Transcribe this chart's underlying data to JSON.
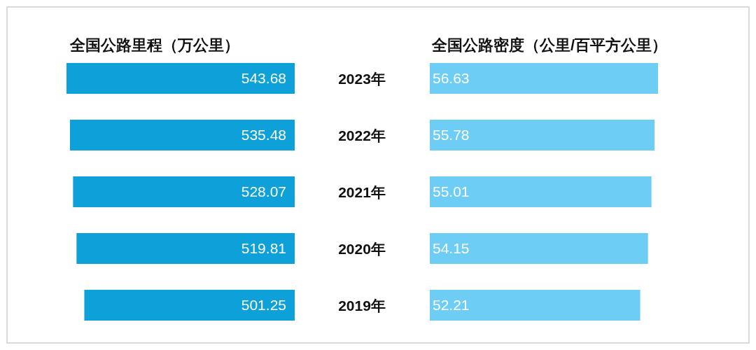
{
  "chart_data": [
    {
      "type": "bar",
      "orientation": "horizontal",
      "title": "全国公路里程（万公里）",
      "categories": [
        "2023年",
        "2022年",
        "2021年",
        "2020年",
        "2019年"
      ],
      "values": [
        543.68,
        535.48,
        528.07,
        519.81,
        501.25
      ],
      "color": "#0ea0d8",
      "data_labels": true
    },
    {
      "type": "bar",
      "orientation": "horizontal",
      "title": "全国公路密度（公里/百平方公里）",
      "categories": [
        null,
        null,
        null,
        null,
        null
      ],
      "values": [
        56.63,
        55.78,
        55.01,
        54.15,
        52.21
      ],
      "color": "#6dcdf5",
      "data_labels": true
    }
  ]
}
